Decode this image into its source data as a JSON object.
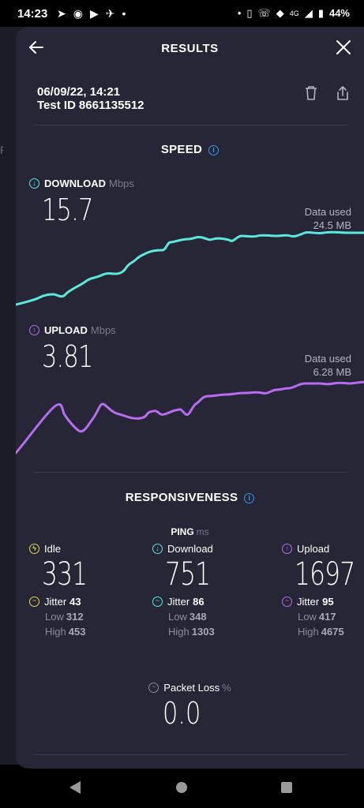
{
  "status_bar": {
    "time": "14:23",
    "battery": "44%",
    "network": "4G",
    "left_icons": [
      "location-arrow-icon",
      "messenger-icon",
      "youtube-icon",
      "app-icon",
      "dot-icon"
    ],
    "right_icons": [
      "dot-icon",
      "vibrate-icon",
      "wifi-calling-icon",
      "wifi-icon",
      "signal-icon",
      "battery-icon"
    ]
  },
  "background": {
    "ping_text": "Ping"
  },
  "header": {
    "title": "RESULTS"
  },
  "test": {
    "date": "06/09/22, 14:21",
    "test_id_label": "Test ID",
    "test_id": "8661135512"
  },
  "speed": {
    "title": "SPEED",
    "download": {
      "label": "DOWNLOAD",
      "unit": "Mbps",
      "value": "15.7",
      "data_used_label": "Data used",
      "data_used": "24.5 MB"
    },
    "upload": {
      "label": "UPLOAD",
      "unit": "Mbps",
      "value": "3.81",
      "data_used_label": "Data used",
      "data_used": "6.28 MB"
    }
  },
  "responsiveness": {
    "title": "RESPONSIVENESS",
    "ping_label": "PING",
    "ping_unit": "ms",
    "columns": [
      {
        "label": "Idle",
        "value": "331",
        "jitter_label": "Jitter",
        "jitter": "43",
        "low_label": "Low",
        "low": "312",
        "high_label": "High",
        "high": "453"
      },
      {
        "label": "Download",
        "value": "751",
        "jitter_label": "Jitter",
        "jitter": "86",
        "low_label": "Low",
        "low": "348",
        "high_label": "High",
        "high": "1303"
      },
      {
        "label": "Upload",
        "value": "1697",
        "jitter_label": "Jitter",
        "jitter": "95",
        "low_label": "Low",
        "low": "417",
        "high_label": "High",
        "high": "4675"
      }
    ],
    "packet_loss_label": "Packet Loss",
    "packet_loss_unit": "%",
    "packet_loss": "0.0"
  },
  "colors": {
    "download": "#5ce8dc",
    "upload": "#b86cf2",
    "idle": "#e8d84a",
    "info": "#2e9bf0",
    "sheet": "#262636"
  }
}
